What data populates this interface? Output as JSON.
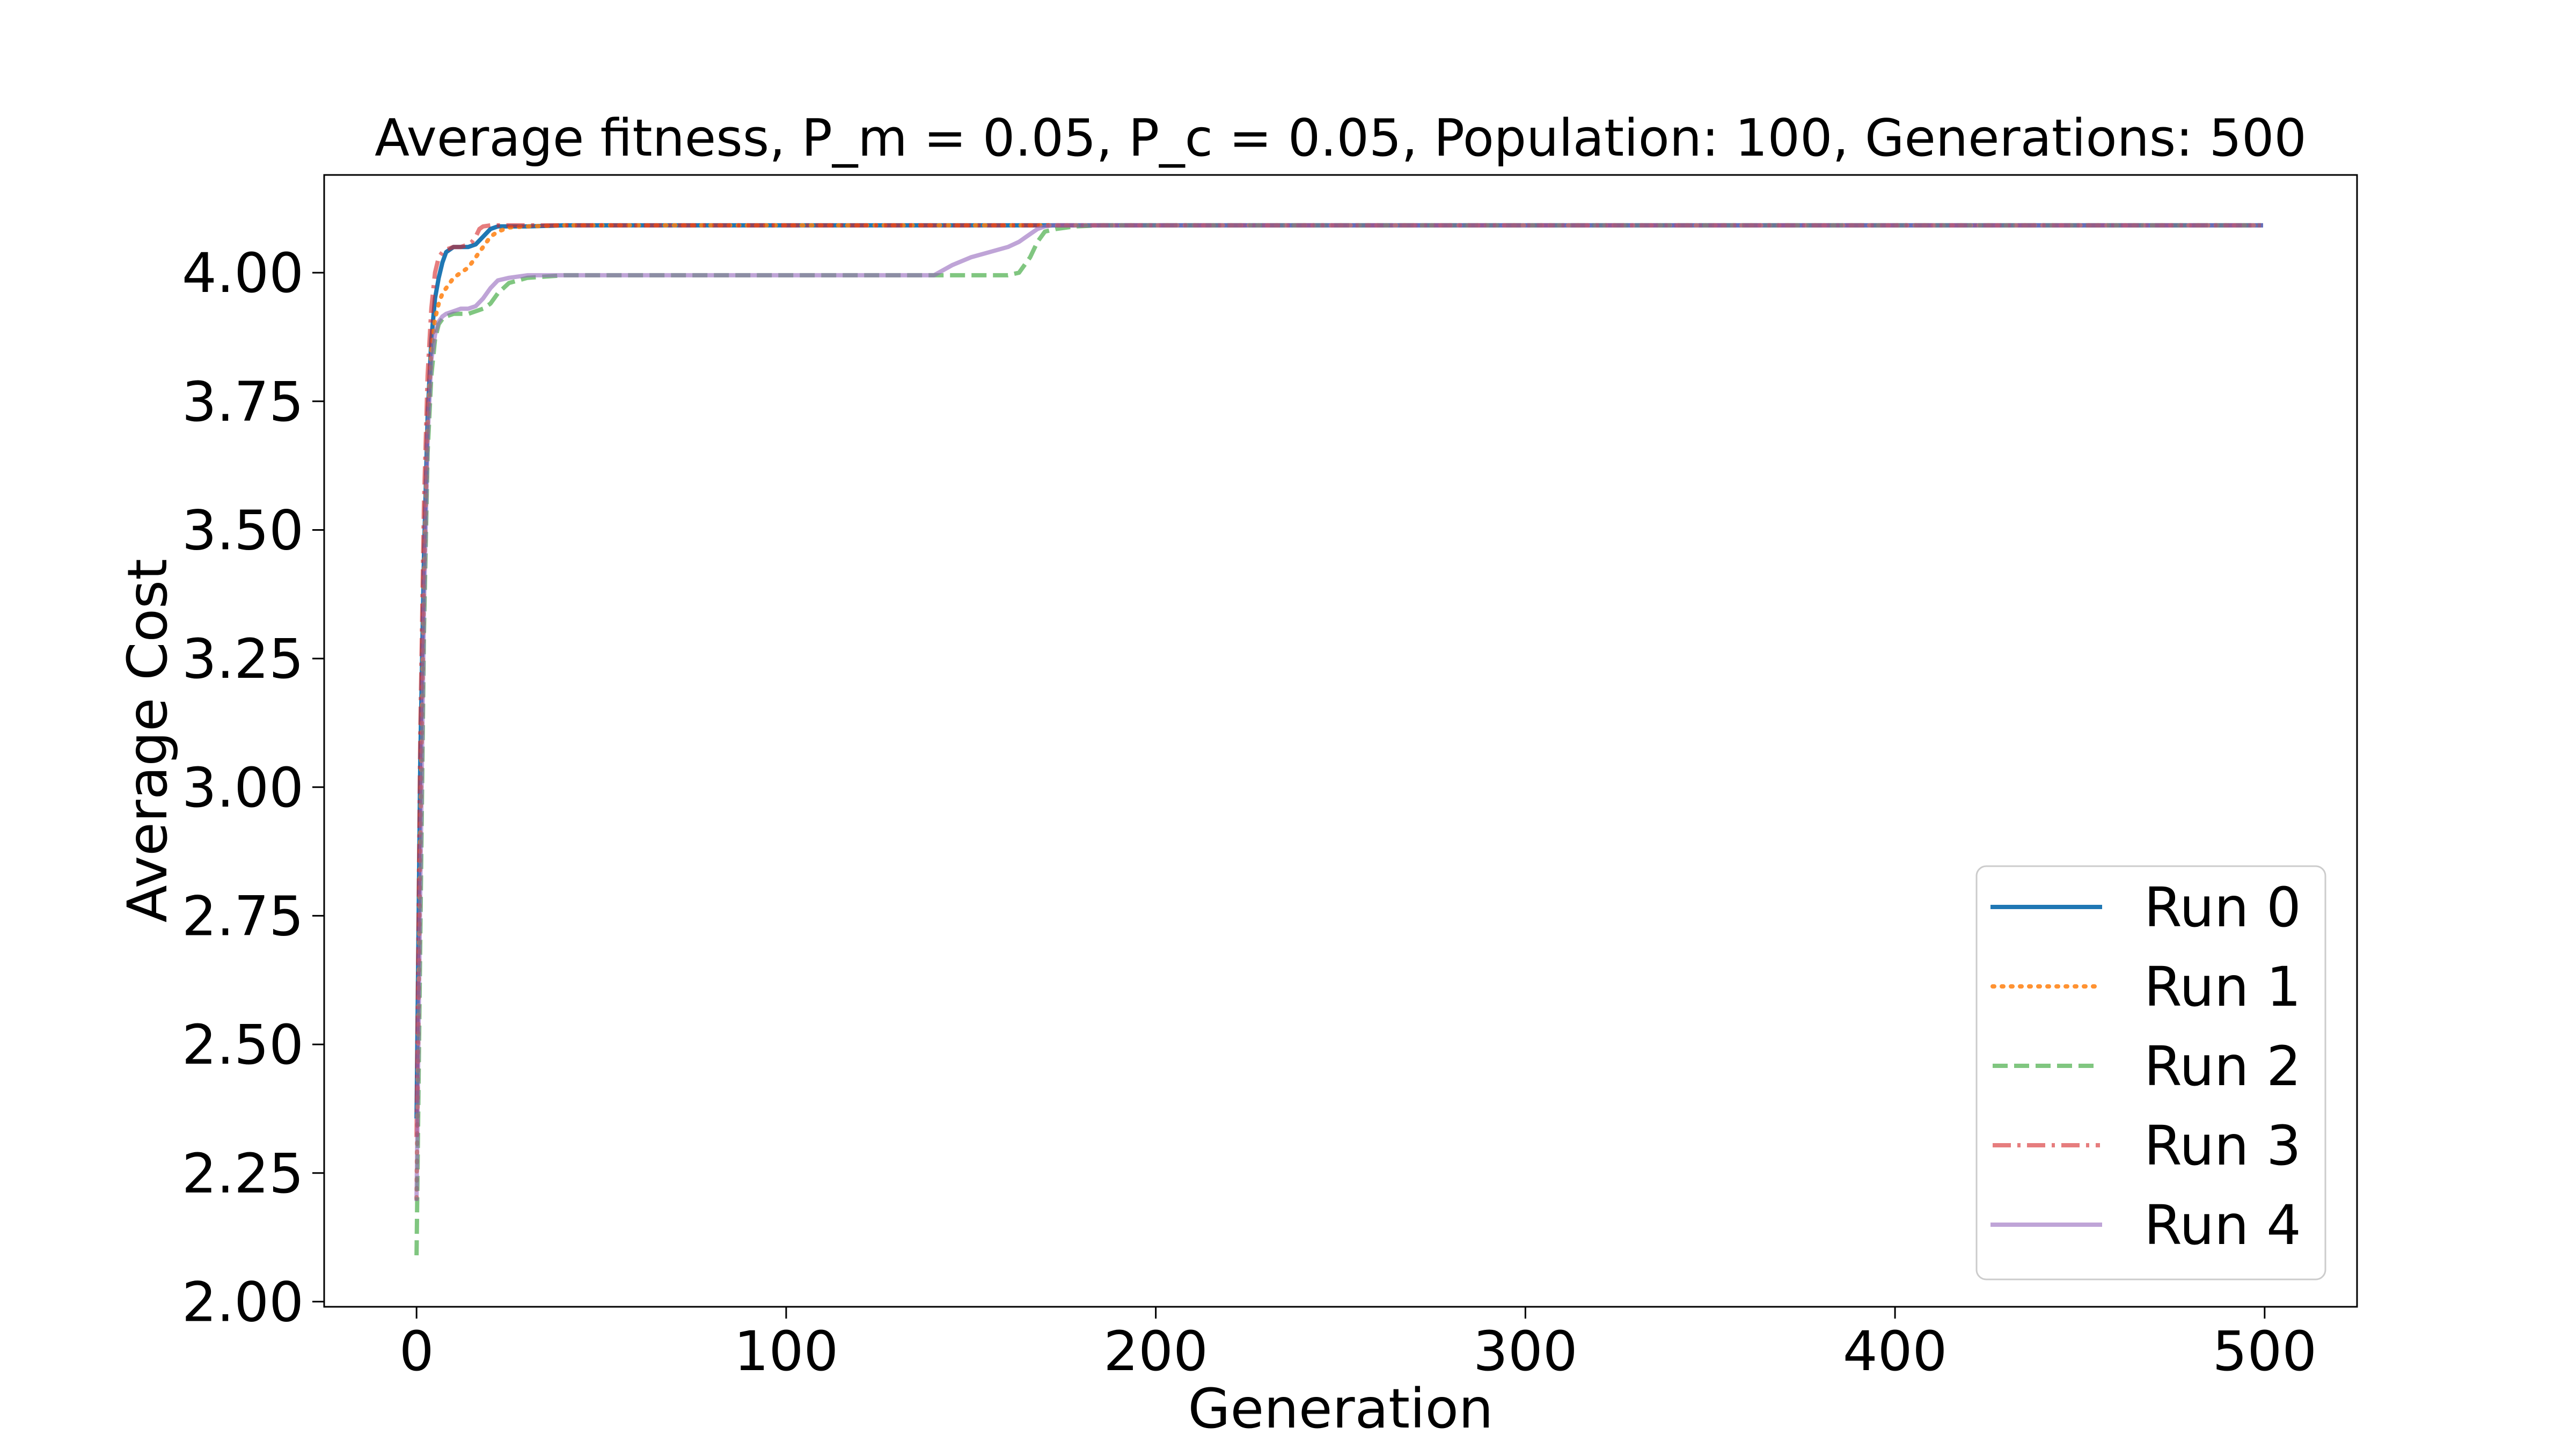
{
  "chart_data": {
    "type": "line",
    "title": "Average fitness, P_m = 0.05, P_c = 0.05, Population: 100, Generations: 500",
    "xlabel": "Generation",
    "ylabel": "Average Cost",
    "xlim": [
      -25,
      525
    ],
    "ylim": [
      1.99,
      4.19
    ],
    "xticks": [
      0,
      100,
      200,
      300,
      400,
      500
    ],
    "xtick_labels": [
      "0",
      "100",
      "200",
      "300",
      "400",
      "500"
    ],
    "yticks": [
      2.0,
      2.25,
      2.5,
      2.75,
      3.0,
      3.25,
      3.5,
      3.75,
      4.0
    ],
    "ytick_labels": [
      "2.00",
      "2.25",
      "2.50",
      "2.75",
      "3.00",
      "3.25",
      "3.50",
      "3.75",
      "4.00"
    ],
    "grid": false,
    "legend_position": "bottom-right",
    "series": [
      {
        "name": "Run 0",
        "color": "#1f77b4",
        "linestyle": "solid",
        "x": [
          0,
          1,
          2,
          3,
          4,
          5,
          6,
          7,
          8,
          10,
          12,
          14,
          16,
          18,
          20,
          22,
          25,
          30,
          40,
          100,
          200,
          300,
          400,
          499
        ],
        "y": [
          2.36,
          3.05,
          3.45,
          3.72,
          3.87,
          3.95,
          3.99,
          4.02,
          4.04,
          4.05,
          4.05,
          4.05,
          4.055,
          4.07,
          4.085,
          4.09,
          4.09,
          4.09,
          4.092,
          4.092,
          4.092,
          4.092,
          4.092,
          4.092
        ]
      },
      {
        "name": "Run 1",
        "color": "#ff7f0e",
        "linestyle": "dotted",
        "x": [
          0,
          1,
          2,
          3,
          4,
          5,
          6,
          7,
          8,
          10,
          12,
          14,
          16,
          18,
          20,
          22,
          25,
          30,
          40,
          100,
          200,
          300,
          400,
          499
        ],
        "y": [
          2.2,
          2.9,
          3.4,
          3.7,
          3.85,
          3.91,
          3.94,
          3.96,
          3.97,
          3.99,
          4.0,
          4.01,
          4.03,
          4.05,
          4.07,
          4.08,
          4.088,
          4.09,
          4.092,
          4.092,
          4.092,
          4.092,
          4.092,
          4.092
        ]
      },
      {
        "name": "Run 2",
        "color": "#2ca02c",
        "linestyle": "dashed",
        "x": [
          0,
          1,
          2,
          3,
          4,
          5,
          6,
          7,
          8,
          10,
          12,
          14,
          16,
          18,
          20,
          22,
          25,
          30,
          40,
          60,
          100,
          140,
          160,
          163,
          166,
          168,
          170,
          173,
          178,
          185,
          200,
          300,
          400,
          499
        ],
        "y": [
          2.09,
          2.7,
          3.3,
          3.65,
          3.8,
          3.87,
          3.9,
          3.91,
          3.915,
          3.92,
          3.92,
          3.92,
          3.925,
          3.93,
          3.94,
          3.96,
          3.98,
          3.99,
          3.995,
          3.995,
          3.995,
          3.995,
          3.995,
          4.0,
          4.03,
          4.06,
          4.08,
          4.085,
          4.09,
          4.092,
          4.092,
          4.092,
          4.092,
          4.092
        ]
      },
      {
        "name": "Run 3",
        "color": "#d62728",
        "linestyle": "dashdot",
        "x": [
          0,
          1,
          2,
          3,
          4,
          5,
          6,
          7,
          8,
          10,
          12,
          14,
          15,
          16,
          17,
          18,
          20,
          25,
          40,
          100,
          200,
          300,
          400,
          499
        ],
        "y": [
          2.32,
          3.1,
          3.55,
          3.8,
          3.93,
          4.0,
          4.03,
          4.04,
          4.045,
          4.05,
          4.05,
          4.055,
          4.06,
          4.07,
          4.085,
          4.09,
          4.092,
          4.092,
          4.092,
          4.092,
          4.092,
          4.092,
          4.092,
          4.092
        ]
      },
      {
        "name": "Run 4",
        "color": "#9467bd",
        "linestyle": "solid",
        "x": [
          0,
          1,
          2,
          3,
          4,
          5,
          6,
          7,
          8,
          10,
          12,
          14,
          16,
          18,
          20,
          22,
          25,
          30,
          40,
          60,
          100,
          140,
          145,
          150,
          155,
          160,
          163,
          166,
          168,
          170,
          172,
          175,
          180,
          200,
          300,
          400,
          499
        ],
        "y": [
          2.2,
          2.8,
          3.35,
          3.68,
          3.83,
          3.88,
          3.905,
          3.915,
          3.92,
          3.925,
          3.93,
          3.93,
          3.935,
          3.95,
          3.97,
          3.985,
          3.99,
          3.995,
          3.995,
          3.995,
          3.995,
          3.995,
          4.015,
          4.03,
          4.04,
          4.05,
          4.06,
          4.075,
          4.085,
          4.09,
          4.092,
          4.092,
          4.092,
          4.092,
          4.092,
          4.092,
          4.092
        ]
      }
    ]
  }
}
